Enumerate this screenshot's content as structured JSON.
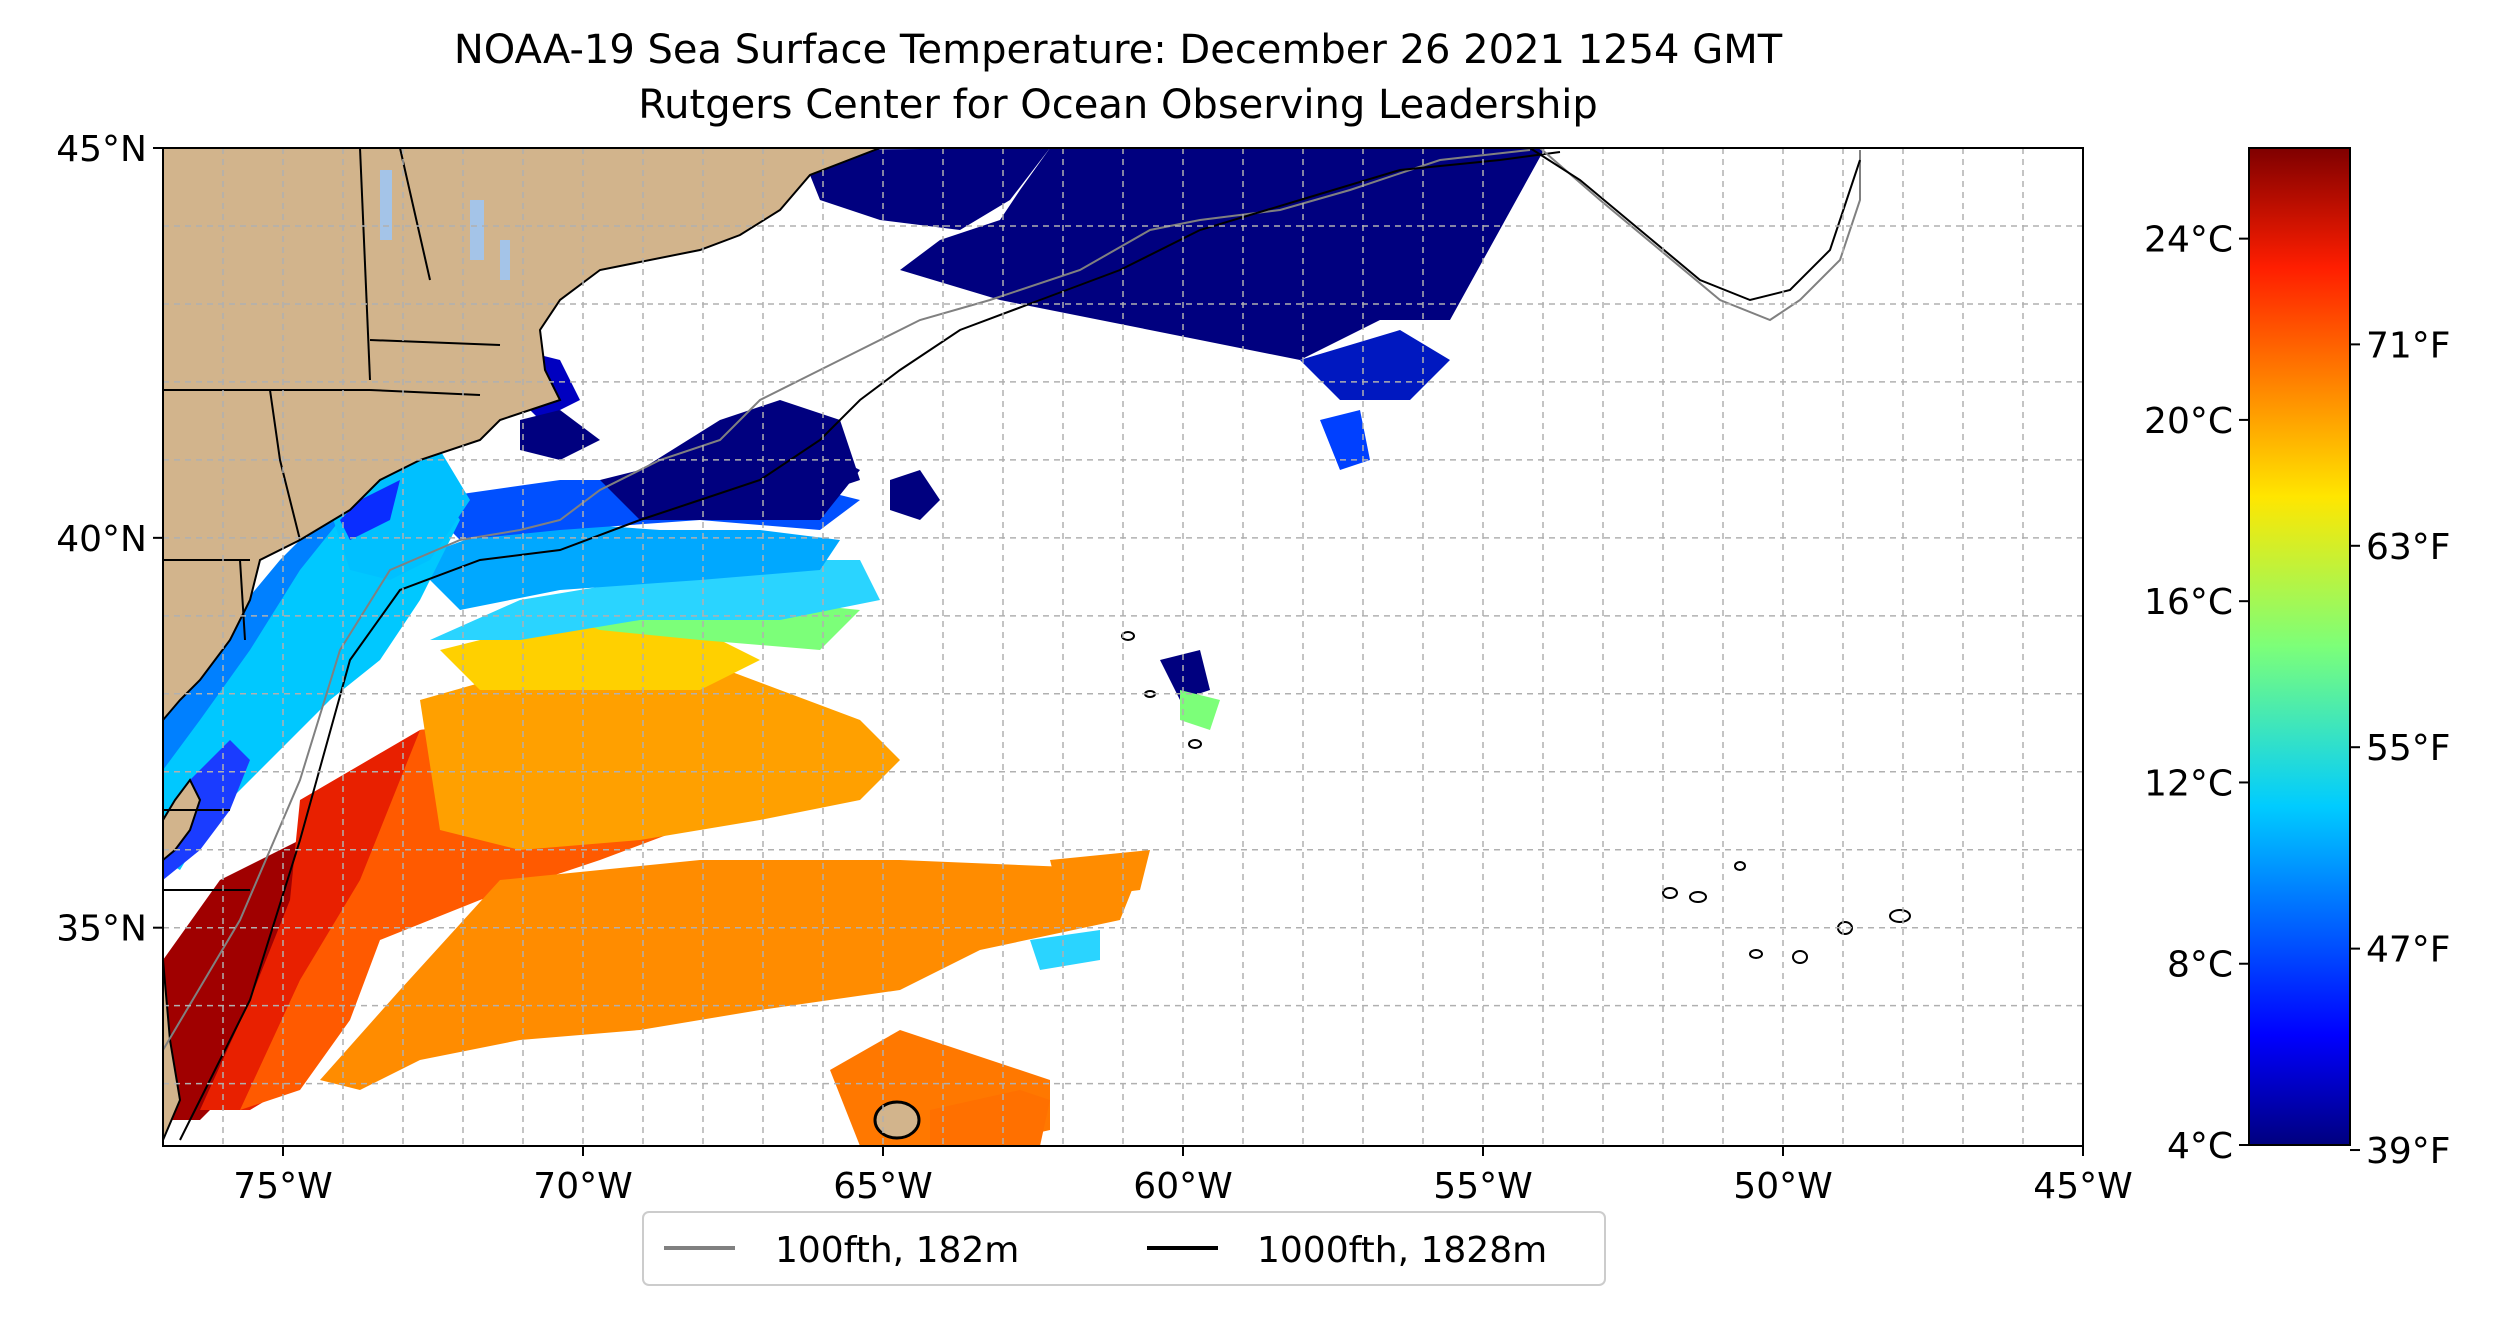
{
  "title": {
    "line1": "NOAA-19 Sea Surface Temperature: December 26 2021 1254 GMT",
    "line2": "Rutgers Center for Ocean Observing Leadership"
  },
  "map": {
    "lon_range": [
      -77,
      -45
    ],
    "lat_range": [
      32.2,
      45
    ],
    "grid": true,
    "lat_ticks": [
      {
        "value": 45,
        "label": "45°N"
      },
      {
        "value": 40,
        "label": "40°N"
      },
      {
        "value": 35,
        "label": "35°N"
      }
    ],
    "lon_ticks": [
      {
        "value": -75,
        "label": "75°W"
      },
      {
        "value": -70,
        "label": "70°W"
      },
      {
        "value": -65,
        "label": "65°W"
      },
      {
        "value": -60,
        "label": "60°W"
      },
      {
        "value": -55,
        "label": "55°W"
      },
      {
        "value": -50,
        "label": "50°W"
      },
      {
        "value": -45,
        "label": "45°W"
      }
    ],
    "land_color": "#d2b48c",
    "lake_color": "#a4c4e8"
  },
  "legend": {
    "placement": "bottom-center",
    "items": [
      {
        "label": "100fth, 182m",
        "color": "#808080"
      },
      {
        "label": "1000fth, 1828m",
        "color": "#000000"
      }
    ]
  },
  "colorbar": {
    "colormap": "jet",
    "range_c": [
      4,
      26
    ],
    "celsius_ticks": [
      {
        "value": 24,
        "label": "24°C"
      },
      {
        "value": 20,
        "label": "20°C"
      },
      {
        "value": 16,
        "label": "16°C"
      },
      {
        "value": 12,
        "label": "12°C"
      },
      {
        "value": 8,
        "label": "8°C"
      },
      {
        "value": 4,
        "label": "4°C"
      }
    ],
    "fahrenheit_ticks": [
      {
        "value": 71,
        "label": "71°F"
      },
      {
        "value": 63,
        "label": "63°F"
      },
      {
        "value": 55,
        "label": "55°F"
      },
      {
        "value": 47,
        "label": "47°F"
      },
      {
        "value": 39,
        "label": "39°F"
      }
    ]
  }
}
